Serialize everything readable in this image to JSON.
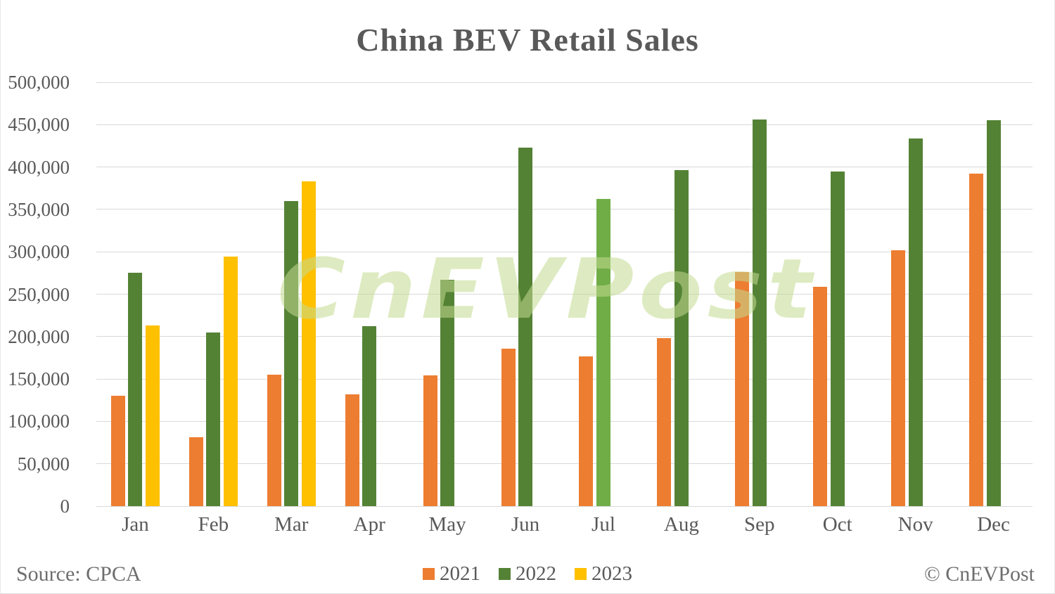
{
  "page": {
    "title": "China BEV Retail Sales",
    "source_label": "Source: CPCA",
    "copyright_label": "© CnEVPost",
    "watermark_text": "CnEVPost"
  },
  "chart_data": {
    "type": "bar",
    "title": "China BEV Retail Sales",
    "categories": [
      "Jan",
      "Feb",
      "Mar",
      "Apr",
      "May",
      "Jun",
      "Jul",
      "Aug",
      "Sep",
      "Oct",
      "Nov",
      "Dec"
    ],
    "series": [
      {
        "name": "2021",
        "color": "#ED7D31",
        "values": [
          130000,
          81000,
          155000,
          132000,
          154000,
          186000,
          177000,
          198000,
          276000,
          259000,
          302000,
          392000
        ]
      },
      {
        "name": "2022",
        "color": "#548235",
        "values": [
          275000,
          205000,
          360000,
          212000,
          267000,
          423000,
          362000,
          396000,
          456000,
          395000,
          434000,
          455000
        ],
        "per_bar_colors": {
          "6": "#70AD47"
        }
      },
      {
        "name": "2023",
        "color": "#FFC000",
        "values": [
          213000,
          294000,
          383000,
          null,
          null,
          null,
          null,
          null,
          null,
          null,
          null,
          null
        ]
      }
    ],
    "ylim": [
      0,
      500000
    ],
    "ytick_step": 50000,
    "ytick_labels": [
      "0",
      "50,000",
      "100,000",
      "150,000",
      "200,000",
      "250,000",
      "300,000",
      "350,000",
      "400,000",
      "450,000",
      "500,000"
    ],
    "grid": "horizontal",
    "gridline_color": "#d9d9d9",
    "legend_position": "bottom-center",
    "legend_entries": [
      "2021",
      "2022",
      "2023"
    ]
  }
}
